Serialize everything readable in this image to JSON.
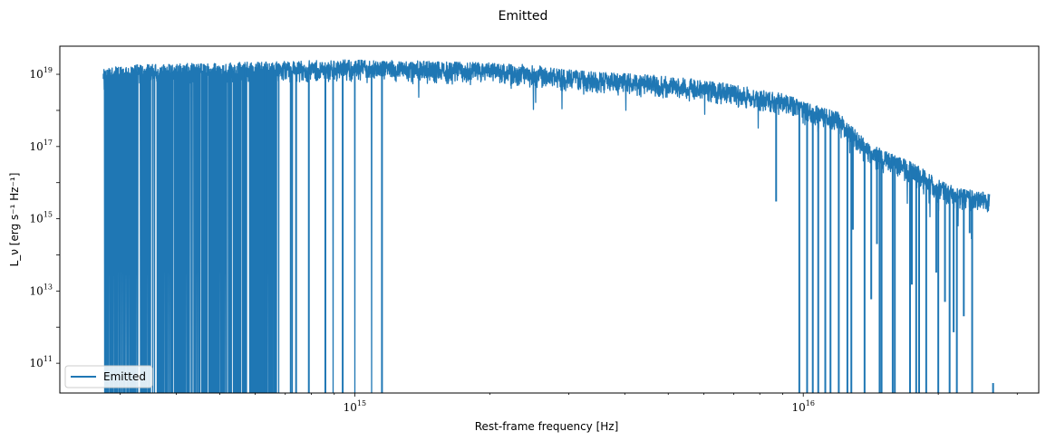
{
  "chart_data": {
    "type": "line",
    "title": "Emitted",
    "xlabel": "Rest-frame frequency [Hz]",
    "ylabel": "L_ν [erg s⁻¹ Hz⁻¹]",
    "xscale": "log",
    "yscale": "log",
    "xlim": [
      220000000000000.0,
      3.35e+16
    ],
    "ylim": [
      15000000000.0,
      6e+19
    ],
    "x_ticks": [
      {
        "base": "10",
        "exp": "15",
        "value": 1000000000000000.0
      },
      {
        "base": "10",
        "exp": "16",
        "value": 1e+16
      }
    ],
    "y_ticks": [
      {
        "base": "10",
        "exp": "11",
        "value": 100000000000.0
      },
      {
        "base": "10",
        "exp": "13",
        "value": 10000000000000.0
      },
      {
        "base": "10",
        "exp": "15",
        "value": 1000000000000000.0
      },
      {
        "base": "10",
        "exp": "17",
        "value": 1e+17
      },
      {
        "base": "10",
        "exp": "19",
        "value": 1e+19
      }
    ],
    "grid": false,
    "legend_position": "lower-left",
    "series": [
      {
        "name": "Emitted",
        "color": "#1f77b4",
        "x_start": 275000000000000.0,
        "x_end": 2.6e+16,
        "envelope": {
          "x": [
            275000000000000.0,
            300000000000000.0,
            400000000000000.0,
            600000000000000.0,
            800000000000000.0,
            1000000000000000.0,
            1300000000000000.0,
            1600000000000000.0,
            2000000000000000.0,
            2500000000000000.0,
            3000000000000000.0,
            3500000000000000.0,
            4000000000000000.0,
            5000000000000000.0,
            6000000000000000.0,
            7000000000000000.0,
            8000000000000000.0,
            9000000000000000.0,
            1e+16,
            1.1e+16,
            1.2e+16,
            1.3e+16,
            1.4e+16,
            1.6e+16,
            1.8e+16,
            2e+16,
            2.2e+16,
            2.4e+16,
            2.6e+16
          ],
          "y": [
            9e+18,
            1.2e+19,
            1.3e+19,
            1.5e+19,
            1.6e+19,
            1.7e+19,
            1.6e+19,
            1.5e+19,
            1.4e+19,
            1.2e+19,
            9e+18,
            8e+18,
            7e+18,
            6e+18,
            4.5e+18,
            3.5e+18,
            2.5e+18,
            2e+18,
            1.2e+18,
            8e+17,
            6e+17,
            2e+17,
            8e+16,
            4e+16,
            2e+16,
            8000000000000000.0,
            5000000000000000.0,
            4000000000000000.0,
            3500000000000000.0
          ]
        },
        "dips": [
          {
            "x": 530000000000000.0,
            "y": 15000000000.0
          },
          {
            "x": 570000000000000.0,
            "y": 15000000000.0
          },
          {
            "x": 630000000000000.0,
            "y": 15000000000.0
          },
          {
            "x": 660000000000000.0,
            "y": 15000000000.0
          },
          {
            "x": 720000000000000.0,
            "y": 15000000000.0
          },
          {
            "x": 740000000000000.0,
            "y": 15000000000.0
          },
          {
            "x": 790000000000000.0,
            "y": 15000000000.0
          },
          {
            "x": 860000000000000.0,
            "y": 15000000000.0
          },
          {
            "x": 940000000000000.0,
            "y": 15000000000.0
          },
          {
            "x": 1150000000000000.0,
            "y": 15000000000.0
          },
          {
            "x": 9800000000000000.0,
            "y": 15000000000.0
          },
          {
            "x": 1.02e+16,
            "y": 15000000000.0
          },
          {
            "x": 1.08e+16,
            "y": 15000000000.0
          },
          {
            "x": 1.15e+16,
            "y": 15000000000.0
          },
          {
            "x": 1.2e+16,
            "y": 15000000000.0
          },
          {
            "x": 1.28e+16,
            "y": 15000000000.0
          },
          {
            "x": 1.37e+16,
            "y": 15000000000.0
          },
          {
            "x": 1.48e+16,
            "y": 15000000000.0
          },
          {
            "x": 1.6e+16,
            "y": 15000000000.0
          },
          {
            "x": 1.73e+16,
            "y": 15000000000.0
          },
          {
            "x": 1.88e+16,
            "y": 15000000000.0
          },
          {
            "x": 2e+16,
            "y": 15000000000.0
          },
          {
            "x": 2.12e+16,
            "y": 15000000000.0
          },
          {
            "x": 2.2e+16,
            "y": 15000000000.0
          },
          {
            "x": 2.38e+16,
            "y": 15000000000.0
          },
          {
            "x": 8700000000000000.0,
            "y": 3000000000000000.0
          },
          {
            "x": 1.29e+16,
            "y": 500000000000000.0
          },
          {
            "x": 1.46e+16,
            "y": 200000000000000.0
          },
          {
            "x": 2.07e+16,
            "y": 5000000000000.0
          },
          {
            "x": 2.28e+16,
            "y": 2000000000000.0
          },
          {
            "x": 2.35e+16,
            "y": 400000000000000.0
          }
        ],
        "tail": {
          "x": 2.65e+16,
          "y": 10000000000.0
        }
      }
    ]
  }
}
